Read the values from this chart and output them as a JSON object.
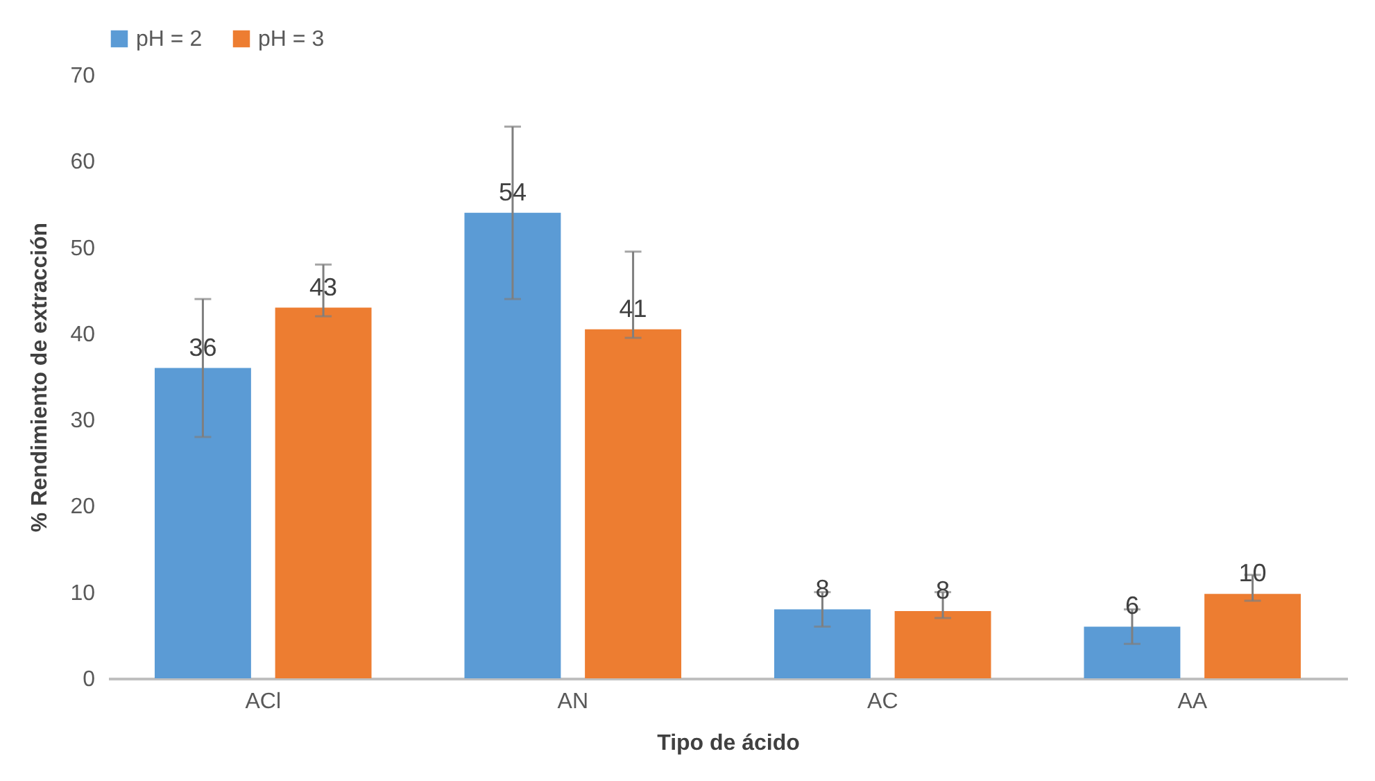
{
  "chart_data": {
    "type": "bar",
    "xlabel": "Tipo de ácido",
    "ylabel": "% Rendimiento de extracción",
    "categories": [
      "ACl",
      "AN",
      "AC",
      "AA"
    ],
    "series": [
      {
        "name": "pH = 2",
        "color": "#5b9bd5",
        "values": [
          36,
          54,
          8,
          6
        ],
        "errors": [
          [
            28,
            44
          ],
          [
            44,
            64
          ],
          [
            6,
            10
          ],
          [
            4,
            8
          ]
        ],
        "value_labels": [
          "36",
          "54",
          "8",
          "6"
        ]
      },
      {
        "name": "pH = 3",
        "color": "#ed7d31",
        "values": [
          43,
          40.5,
          7.8,
          9.8
        ],
        "errors": [
          [
            42,
            48
          ],
          [
            39.5,
            49.5
          ],
          [
            7,
            10
          ],
          [
            9,
            12
          ]
        ],
        "value_labels": [
          "43",
          "41",
          "8",
          "10"
        ]
      }
    ],
    "ylim": [
      0,
      70
    ],
    "yticks": [
      0,
      10,
      20,
      30,
      40,
      50,
      60,
      70
    ],
    "legend": "top",
    "grid": false
  }
}
